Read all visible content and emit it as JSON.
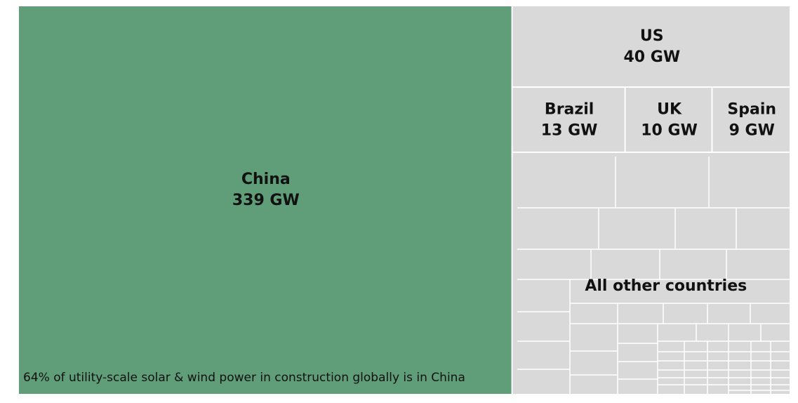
{
  "chart_data": {
    "type": "treemap",
    "categories": [
      "China",
      "US",
      "Brazil",
      "UK",
      "Spain",
      "All other countries"
    ],
    "values": [
      339,
      40,
      13,
      10,
      9,
      119
    ],
    "value_labels": [
      "339 GW",
      "40 GW",
      "13 GW",
      "10 GW",
      "9 GW",
      null
    ],
    "colors": [
      "#5f9e79",
      "#d9d9d9",
      "#d9d9d9",
      "#d9d9d9",
      "#d9d9d9",
      "#d9d9d9"
    ],
    "annotation": "64% of utility-scale solar & wind power in construction globally is in China"
  }
}
